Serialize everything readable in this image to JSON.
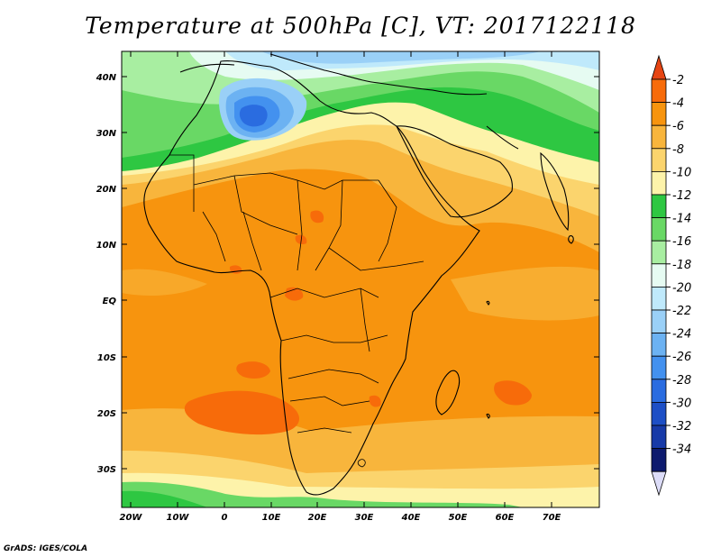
{
  "title": "Temperature at 500hPa [C], VT: 2017122118",
  "credit": "GrADS: IGES/COLA",
  "lat_labels": [
    "40N",
    "30N",
    "20N",
    "10N",
    "EQ",
    "10S",
    "20S",
    "30S"
  ],
  "lon_labels": [
    "20W",
    "10W",
    "0",
    "10E",
    "20E",
    "30E",
    "40E",
    "50E",
    "60E",
    "70E"
  ],
  "colorbar": {
    "labels": [
      "-2",
      "-4",
      "-6",
      "-8",
      "-10",
      "-12",
      "-14",
      "-16",
      "-18",
      "-20",
      "-22",
      "-24",
      "-26",
      "-28",
      "-30",
      "-32",
      "-34"
    ],
    "colors": [
      "#e64513",
      "#f76b0a",
      "#f7940e",
      "#f8b53c",
      "#fbd46d",
      "#fdf3aa",
      "#2ec742",
      "#69d865",
      "#a8eea1",
      "#e6fbf2",
      "#bfe9fb",
      "#9ad0f7",
      "#6cb2f2",
      "#4391ef",
      "#2a6ce0",
      "#1d4fc6",
      "#173aa8",
      "#0d1a6e",
      "#dcdcf8"
    ]
  }
}
